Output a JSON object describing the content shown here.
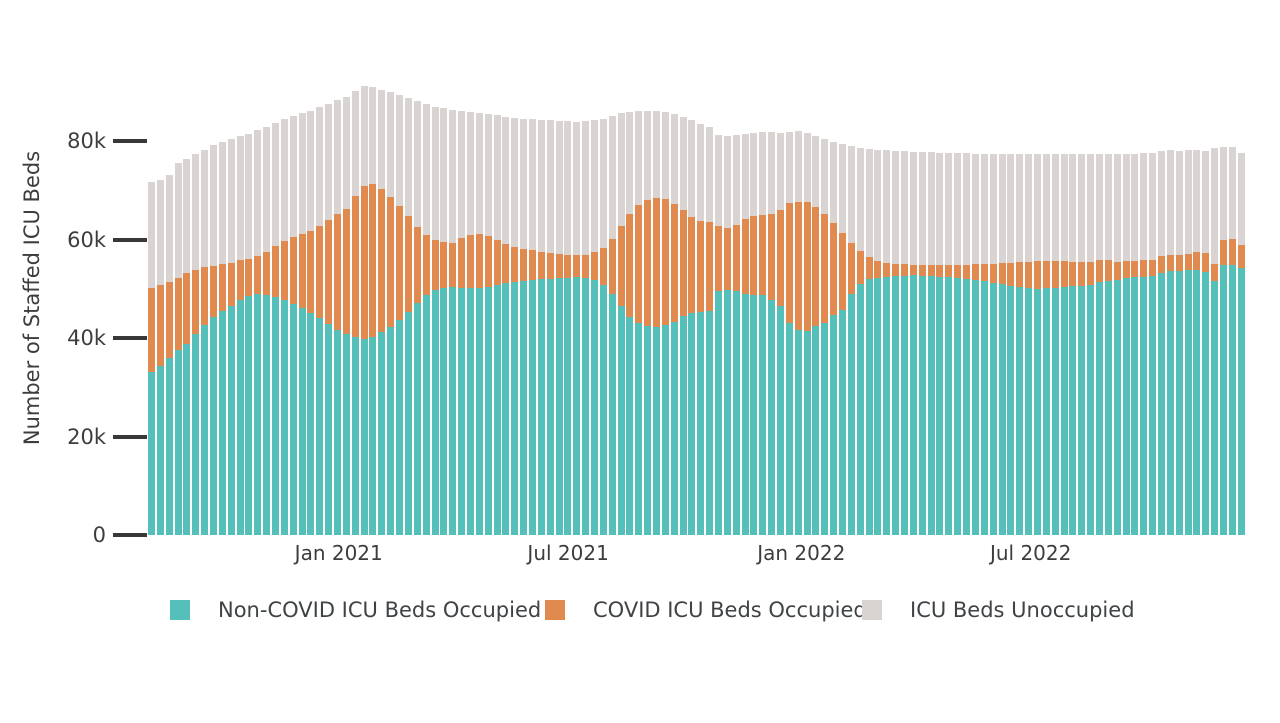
{
  "chart_data": {
    "type": "bar",
    "stacked": true,
    "title": "",
    "xlabel": "",
    "ylabel": "Number of Staffed ICU Beds",
    "values_unit": "thousands of beds",
    "ylim": [
      0,
      80000
    ],
    "grid": false,
    "legend_position": "bottom",
    "yticks": [
      {
        "label": "0",
        "value": 0
      },
      {
        "label": "20k",
        "value": 20
      },
      {
        "label": "40k",
        "value": 40
      },
      {
        "label": "60k",
        "value": 60
      },
      {
        "label": "80k",
        "value": 80
      }
    ],
    "xticks": [
      {
        "label": "Jan 2021",
        "week": 21.0
      },
      {
        "label": "Jul 2021",
        "week": 46.86
      },
      {
        "label": "Jan 2022",
        "week": 73.14
      },
      {
        "label": "Jul 2022",
        "week": 99.0
      }
    ],
    "x": [
      "2020-08-07",
      "2020-08-14",
      "2020-08-21",
      "2020-08-28",
      "2020-09-04",
      "2020-09-11",
      "2020-09-18",
      "2020-09-25",
      "2020-10-02",
      "2020-10-09",
      "2020-10-16",
      "2020-10-23",
      "2020-10-30",
      "2020-11-06",
      "2020-11-13",
      "2020-11-20",
      "2020-11-27",
      "2020-12-04",
      "2020-12-11",
      "2020-12-18",
      "2020-12-25",
      "2021-01-01",
      "2021-01-08",
      "2021-01-15",
      "2021-01-22",
      "2021-01-29",
      "2021-02-05",
      "2021-02-12",
      "2021-02-19",
      "2021-02-26",
      "2021-03-05",
      "2021-03-12",
      "2021-03-19",
      "2021-03-26",
      "2021-04-02",
      "2021-04-09",
      "2021-04-16",
      "2021-04-23",
      "2021-04-30",
      "2021-05-07",
      "2021-05-14",
      "2021-05-21",
      "2021-05-28",
      "2021-06-04",
      "2021-06-11",
      "2021-06-18",
      "2021-06-25",
      "2021-07-02",
      "2021-07-09",
      "2021-07-16",
      "2021-07-23",
      "2021-07-30",
      "2021-08-06",
      "2021-08-13",
      "2021-08-20",
      "2021-08-27",
      "2021-09-03",
      "2021-09-10",
      "2021-09-17",
      "2021-09-24",
      "2021-10-01",
      "2021-10-08",
      "2021-10-15",
      "2021-10-22",
      "2021-10-29",
      "2021-11-05",
      "2021-11-12",
      "2021-11-19",
      "2021-11-26",
      "2021-12-03",
      "2021-12-10",
      "2021-12-17",
      "2021-12-24",
      "2021-12-31",
      "2022-01-07",
      "2022-01-14",
      "2022-01-21",
      "2022-01-28",
      "2022-02-04",
      "2022-02-11",
      "2022-02-18",
      "2022-02-25",
      "2022-03-04",
      "2022-03-11",
      "2022-03-18",
      "2022-03-25",
      "2022-04-01",
      "2022-04-08",
      "2022-04-15",
      "2022-04-22",
      "2022-04-29",
      "2022-05-06",
      "2022-05-13",
      "2022-05-20",
      "2022-05-27",
      "2022-06-03",
      "2022-06-10",
      "2022-06-17",
      "2022-06-24",
      "2022-07-01",
      "2022-07-08",
      "2022-07-15",
      "2022-07-22",
      "2022-07-29",
      "2022-08-05",
      "2022-08-12",
      "2022-08-19",
      "2022-08-26",
      "2022-09-02",
      "2022-09-09",
      "2022-09-16",
      "2022-09-23",
      "2022-09-30",
      "2022-10-07",
      "2022-10-14",
      "2022-10-21",
      "2022-10-28",
      "2022-11-04",
      "2022-11-11",
      "2022-11-18",
      "2022-11-25",
      "2022-12-02",
      "2022-12-09",
      "2022-12-16"
    ],
    "series": [
      {
        "name": "Non-COVID ICU Beds Occupied",
        "color": "#55bfba",
        "values": [
          33.2,
          34.4,
          35.9,
          37.6,
          38.9,
          40.9,
          42.6,
          44.3,
          45.6,
          46.6,
          47.8,
          48.5,
          48.9,
          48.7,
          48.3,
          47.7,
          46.9,
          46.1,
          45.2,
          44.1,
          42.8,
          41.6,
          40.8,
          40.2,
          39.9,
          40.3,
          41.2,
          42.3,
          43.7,
          45.4,
          47.2,
          48.7,
          49.8,
          50.2,
          50.4,
          50.3,
          50.2,
          50.3,
          50.5,
          50.8,
          51.2,
          51.5,
          51.7,
          51.9,
          52.0,
          52.1,
          52.2,
          52.3,
          52.4,
          52.3,
          51.8,
          50.9,
          48.9,
          46.5,
          44.3,
          43.0,
          42.4,
          42.3,
          42.6,
          43.4,
          44.5,
          45.1,
          45.3,
          45.6,
          49.6,
          49.9,
          49.7,
          49.0,
          48.8,
          48.8,
          47.8,
          46.5,
          43.1,
          41.7,
          41.4,
          42.4,
          43.1,
          44.7,
          45.8,
          49.0,
          51.0,
          52.0,
          52.3,
          52.5,
          52.6,
          52.7,
          52.8,
          52.7,
          52.6,
          52.5,
          52.4,
          52.3,
          52.1,
          51.9,
          51.6,
          51.3,
          51.0,
          50.7,
          50.4,
          50.2,
          50.1,
          50.2,
          50.3,
          50.5,
          50.6,
          50.7,
          50.9,
          51.4,
          51.6,
          51.8,
          52.2,
          52.4,
          52.5,
          52.6,
          53.2,
          53.6,
          53.7,
          53.8,
          53.9,
          53.5,
          51.7,
          54.9,
          54.9,
          54.3
        ]
      },
      {
        "name": "COVID ICU Beds Occupied",
        "color": "#e18a4f",
        "values": [
          17.0,
          16.5,
          15.6,
          14.6,
          14.3,
          13.0,
          11.8,
          10.4,
          9.5,
          8.8,
          8.1,
          7.7,
          7.9,
          8.9,
          10.4,
          12.0,
          13.6,
          15.1,
          16.7,
          18.8,
          21.3,
          23.7,
          25.5,
          28.7,
          31.1,
          31.0,
          29.1,
          26.4,
          23.2,
          19.5,
          15.5,
          12.3,
          10.2,
          9.4,
          8.9,
          10.0,
          10.8,
          10.9,
          10.3,
          9.1,
          7.9,
          7.1,
          6.5,
          6.0,
          5.5,
          5.2,
          4.9,
          4.7,
          4.5,
          4.6,
          5.7,
          7.4,
          11.3,
          16.3,
          21.0,
          24.1,
          25.8,
          26.3,
          25.7,
          23.9,
          21.5,
          19.5,
          18.6,
          18.0,
          13.3,
          12.6,
          13.4,
          15.2,
          16.0,
          16.2,
          17.5,
          19.5,
          24.3,
          26.0,
          26.3,
          24.3,
          22.2,
          18.7,
          15.7,
          10.3,
          6.8,
          4.5,
          3.5,
          2.9,
          2.5,
          2.3,
          2.1,
          2.1,
          2.2,
          2.3,
          2.5,
          2.6,
          2.8,
          3.1,
          3.4,
          3.8,
          4.2,
          4.6,
          5.1,
          5.4,
          5.6,
          5.6,
          5.5,
          5.2,
          5.0,
          4.8,
          4.7,
          4.6,
          4.3,
          3.8,
          3.5,
          3.4,
          3.4,
          3.3,
          3.6,
          3.4,
          3.3,
          3.4,
          3.6,
          3.8,
          3.5,
          5.1,
          5.3,
          4.6
        ]
      },
      {
        "name": "ICU Beds Unoccupied",
        "color": "#d9d3d1",
        "values": [
          21.6,
          21.3,
          21.7,
          23.4,
          23.2,
          23.6,
          23.9,
          24.5,
          24.8,
          25.2,
          25.2,
          25.4,
          25.5,
          25.3,
          25.0,
          24.9,
          24.6,
          24.5,
          24.4,
          24.1,
          23.6,
          23.1,
          22.7,
          21.4,
          20.2,
          19.7,
          20.2,
          21.3,
          22.5,
          23.9,
          25.5,
          26.6,
          27.1,
          27.2,
          27.2,
          25.9,
          24.9,
          24.5,
          24.7,
          25.4,
          25.9,
          26.2,
          26.4,
          26.6,
          26.9,
          27.0,
          27.1,
          27.1,
          27.1,
          27.2,
          26.8,
          26.3,
          25.0,
          22.9,
          20.7,
          19.1,
          18.1,
          17.6,
          17.7,
          18.3,
          19.0,
          19.8,
          19.7,
          19.3,
          18.5,
          18.7,
          18.2,
          17.4,
          17.0,
          17.0,
          16.6,
          15.8,
          14.6,
          14.4,
          14.1,
          14.5,
          15.2,
          16.4,
          17.9,
          19.7,
          20.9,
          22.0,
          22.5,
          22.8,
          23.0,
          23.0,
          23.0,
          23.0,
          23.0,
          22.9,
          22.8,
          22.7,
          22.7,
          22.5,
          22.5,
          22.3,
          22.2,
          22.1,
          21.9,
          21.8,
          21.7,
          21.6,
          21.6,
          21.7,
          21.8,
          21.9,
          21.8,
          21.5,
          21.5,
          21.8,
          21.8,
          21.7,
          21.7,
          21.8,
          21.2,
          21.2,
          21.1,
          21.0,
          20.8,
          20.7,
          23.4,
          18.9,
          18.7,
          18.7
        ]
      }
    ],
    "colors": {
      "non_covid": "#55bfba",
      "covid": "#e18a4f",
      "unoccupied": "#d9d3d1",
      "axis_text": "#3d3d3d",
      "tick_mark": "#383838",
      "background": "#ffffff"
    }
  }
}
